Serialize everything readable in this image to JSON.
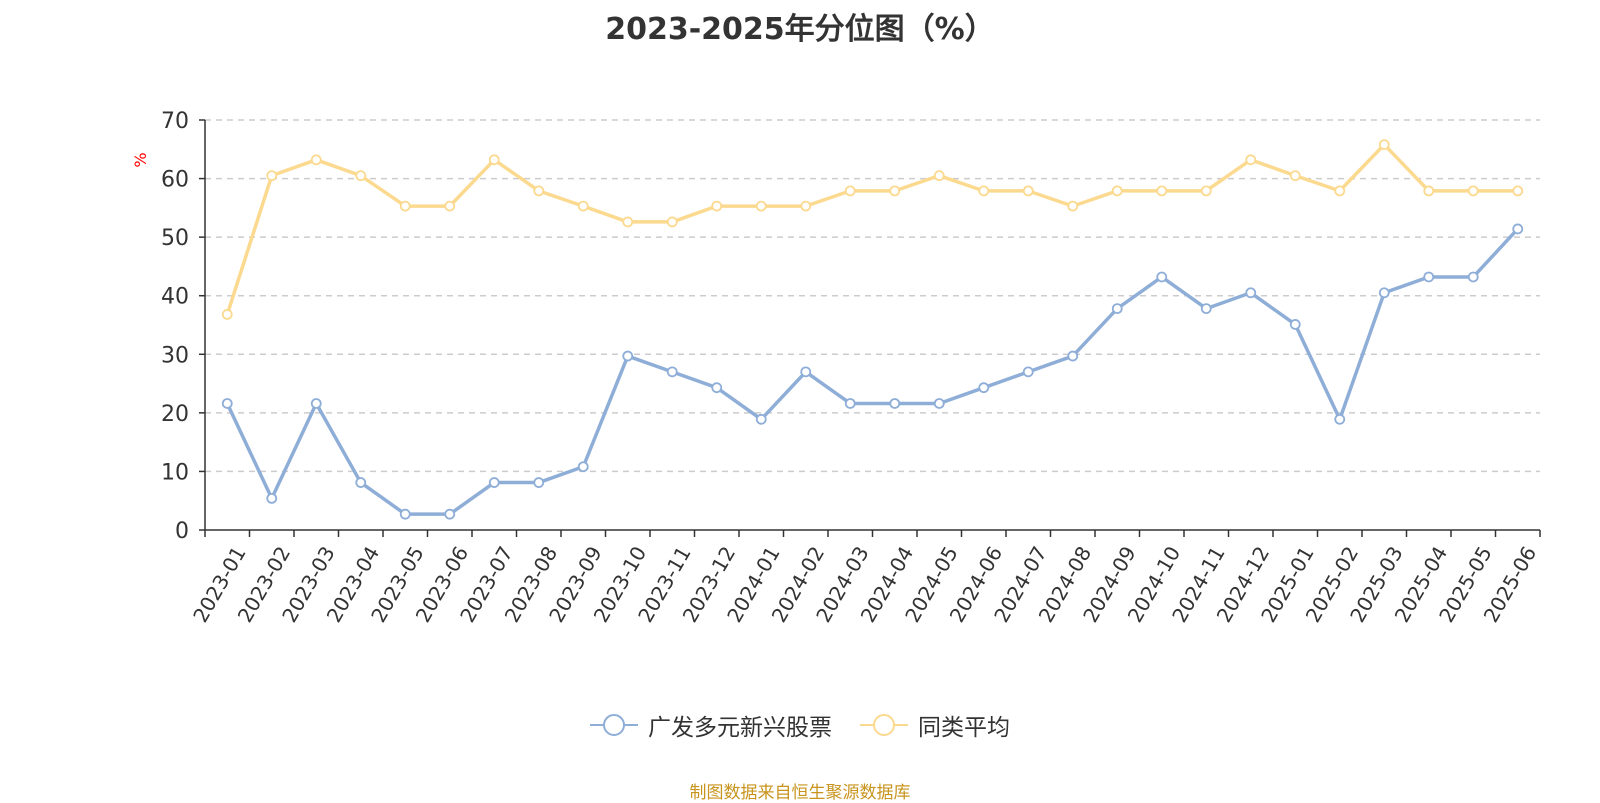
{
  "title": "2023-2025年分位图（%）",
  "source": "制图数据来自恒生聚源数据库",
  "colors": {
    "series1": "#8eaed8",
    "series2": "#fbd98f",
    "grid": "#cccccc",
    "axis": "#333333",
    "yunit": "#ff0000",
    "source": "#c8941e"
  },
  "chart_data": {
    "type": "line",
    "title": "2023-2025年分位图（%）",
    "ylabel": "%",
    "ylim": [
      0,
      70
    ],
    "yticks": [
      0,
      10,
      20,
      30,
      40,
      50,
      60,
      70
    ],
    "grid": true,
    "legend_position": "bottom",
    "categories": [
      "2023-01",
      "2023-02",
      "2023-03",
      "2023-04",
      "2023-05",
      "2023-06",
      "2023-07",
      "2023-08",
      "2023-09",
      "2023-10",
      "2023-11",
      "2023-12",
      "2024-01",
      "2024-02",
      "2024-03",
      "2024-04",
      "2024-05",
      "2024-06",
      "2024-07",
      "2024-08",
      "2024-09",
      "2024-10",
      "2024-11",
      "2024-12",
      "2025-01",
      "2025-02",
      "2025-03",
      "2025-04",
      "2025-05",
      "2025-06"
    ],
    "series": [
      {
        "name": "广发多元新兴股票",
        "values": [
          21.6,
          5.4,
          21.6,
          8.1,
          2.7,
          2.7,
          8.1,
          8.1,
          10.8,
          29.7,
          27.0,
          24.3,
          18.9,
          27.0,
          21.6,
          21.6,
          21.6,
          24.3,
          27.0,
          29.7,
          37.8,
          43.2,
          37.8,
          40.5,
          35.1,
          18.9,
          40.5,
          43.2,
          43.2,
          51.4
        ]
      },
      {
        "name": "同类平均",
        "values": [
          36.8,
          60.5,
          63.2,
          60.5,
          55.3,
          55.3,
          63.2,
          57.9,
          55.3,
          52.6,
          52.6,
          55.3,
          55.3,
          55.3,
          57.9,
          57.9,
          60.5,
          57.9,
          57.9,
          55.3,
          57.9,
          57.9,
          57.9,
          63.2,
          60.5,
          57.9,
          65.8,
          57.9,
          57.9,
          57.9
        ]
      }
    ]
  }
}
